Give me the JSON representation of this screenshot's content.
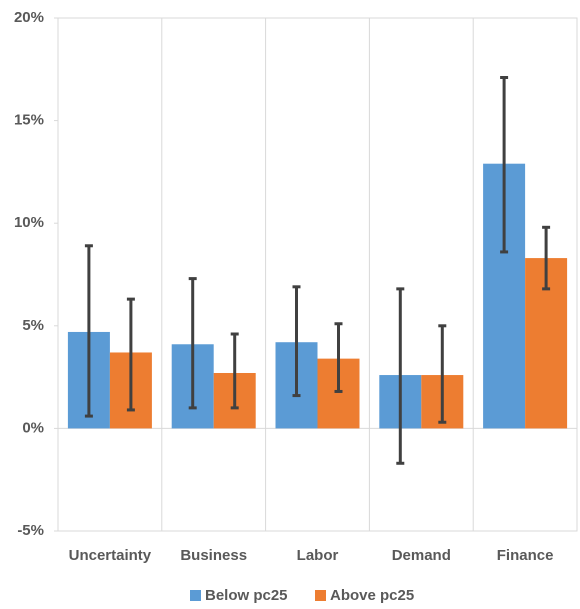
{
  "chart_data": {
    "type": "bar",
    "categories": [
      "Uncertainty",
      "Business",
      "Labor",
      "Demand",
      "Finance"
    ],
    "series": [
      {
        "name": "Below pc25",
        "color": "#5b9bd5",
        "values": [
          4.7,
          4.1,
          4.2,
          2.6,
          12.9
        ],
        "lower": [
          0.6,
          1.0,
          1.6,
          -1.7,
          8.6
        ],
        "upper": [
          8.9,
          7.3,
          6.9,
          6.8,
          17.1
        ]
      },
      {
        "name": "Above pc25",
        "color": "#ed7d31",
        "values": [
          3.7,
          2.7,
          3.4,
          2.6,
          8.3
        ],
        "lower": [
          0.9,
          1.0,
          1.8,
          0.3,
          6.8
        ],
        "upper": [
          6.3,
          4.6,
          5.1,
          5.0,
          9.8
        ]
      }
    ],
    "ylim": [
      -5,
      20
    ],
    "yticks": [
      {
        "value": -5,
        "label": "-5%"
      },
      {
        "value": 0,
        "label": "0%"
      },
      {
        "value": 5,
        "label": "5%"
      },
      {
        "value": 10,
        "label": "10%"
      },
      {
        "value": 15,
        "label": "15%"
      },
      {
        "value": 20,
        "label": "20%"
      }
    ],
    "error_color": "#404040",
    "legend": "bottom"
  }
}
